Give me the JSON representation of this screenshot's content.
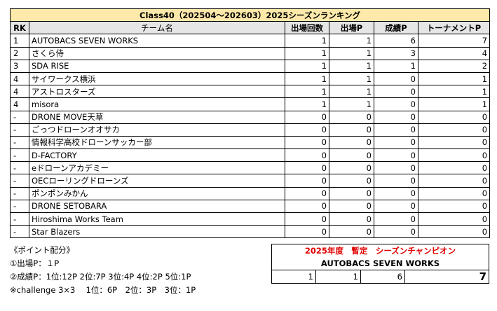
{
  "ranking": {
    "title": "Class40（202504～202603）2025シーズンランキング",
    "headers": {
      "rk": "RK",
      "team": "チーム名",
      "appearances": "出場回数",
      "appearance_p": "出場P",
      "result_p": "成績P",
      "tournament_p": "トーナメントP"
    },
    "rows": [
      {
        "rk": "1",
        "team": "AUTOBACS SEVEN WORKS",
        "appearances": "1",
        "appearance_p": "1",
        "result_p": "6",
        "tournament_p": "7"
      },
      {
        "rk": "2",
        "team": "さくら侍",
        "appearances": "1",
        "appearance_p": "1",
        "result_p": "3",
        "tournament_p": "4"
      },
      {
        "rk": "3",
        "team": "SDA RISE",
        "appearances": "1",
        "appearance_p": "1",
        "result_p": "1",
        "tournament_p": "2"
      },
      {
        "rk": "4",
        "team": "サイワークス横浜",
        "appearances": "1",
        "appearance_p": "1",
        "result_p": "0",
        "tournament_p": "1"
      },
      {
        "rk": "4",
        "team": "アストロスターズ",
        "appearances": "1",
        "appearance_p": "1",
        "result_p": "0",
        "tournament_p": "1"
      },
      {
        "rk": "4",
        "team": "misora",
        "appearances": "1",
        "appearance_p": "1",
        "result_p": "0",
        "tournament_p": "1"
      },
      {
        "rk": "-",
        "team": "DRONE MOVE天草",
        "appearances": "0",
        "appearance_p": "0",
        "result_p": "0",
        "tournament_p": "0"
      },
      {
        "rk": "-",
        "team": "ごっつドローンオオサカ",
        "appearances": "0",
        "appearance_p": "0",
        "result_p": "0",
        "tournament_p": "0"
      },
      {
        "rk": "-",
        "team": "情報科学高校ドローンサッカー部",
        "appearances": "0",
        "appearance_p": "0",
        "result_p": "0",
        "tournament_p": "0"
      },
      {
        "rk": "-",
        "team": "D-FACTORY",
        "appearances": "0",
        "appearance_p": "0",
        "result_p": "0",
        "tournament_p": "0"
      },
      {
        "rk": "-",
        "team": "eドローンアカデミー",
        "appearances": "0",
        "appearance_p": "0",
        "result_p": "0",
        "tournament_p": "0"
      },
      {
        "rk": "-",
        "team": "OECローリングドローンズ",
        "appearances": "0",
        "appearance_p": "0",
        "result_p": "0",
        "tournament_p": "0"
      },
      {
        "rk": "-",
        "team": "ポンポンみかん",
        "appearances": "0",
        "appearance_p": "0",
        "result_p": "0",
        "tournament_p": "0"
      },
      {
        "rk": "-",
        "team": "DRONE SETOBARA",
        "appearances": "0",
        "appearance_p": "0",
        "result_p": "0",
        "tournament_p": "0"
      },
      {
        "rk": "-",
        "team": "Hiroshima Works Team",
        "appearances": "0",
        "appearance_p": "0",
        "result_p": "0",
        "tournament_p": "0"
      },
      {
        "rk": "-",
        "team": "Star Blazers",
        "appearances": "0",
        "appearance_p": "0",
        "result_p": "0",
        "tournament_p": "0"
      }
    ]
  },
  "notes": {
    "heading": "《ポイント配分》",
    "line1": "①出場P：１P",
    "line2": "②成績P：1位:12P  2位:7P  3位:4P  4位:2P  5位:1P",
    "line3": "※challenge 3×3　 1位：6P　2位：3P　3位：1P"
  },
  "champion": {
    "title": "2025年度　暫定　シーズンチャンピオン",
    "team": "AUTOBACS SEVEN WORKS",
    "appearances": "1",
    "appearance_p": "1",
    "result_p": "6",
    "tournament_p": "7"
  },
  "colors": {
    "title_bg": "#fde9a9",
    "header_bg": "#e6e6e6",
    "champion_title": "#e00000"
  }
}
